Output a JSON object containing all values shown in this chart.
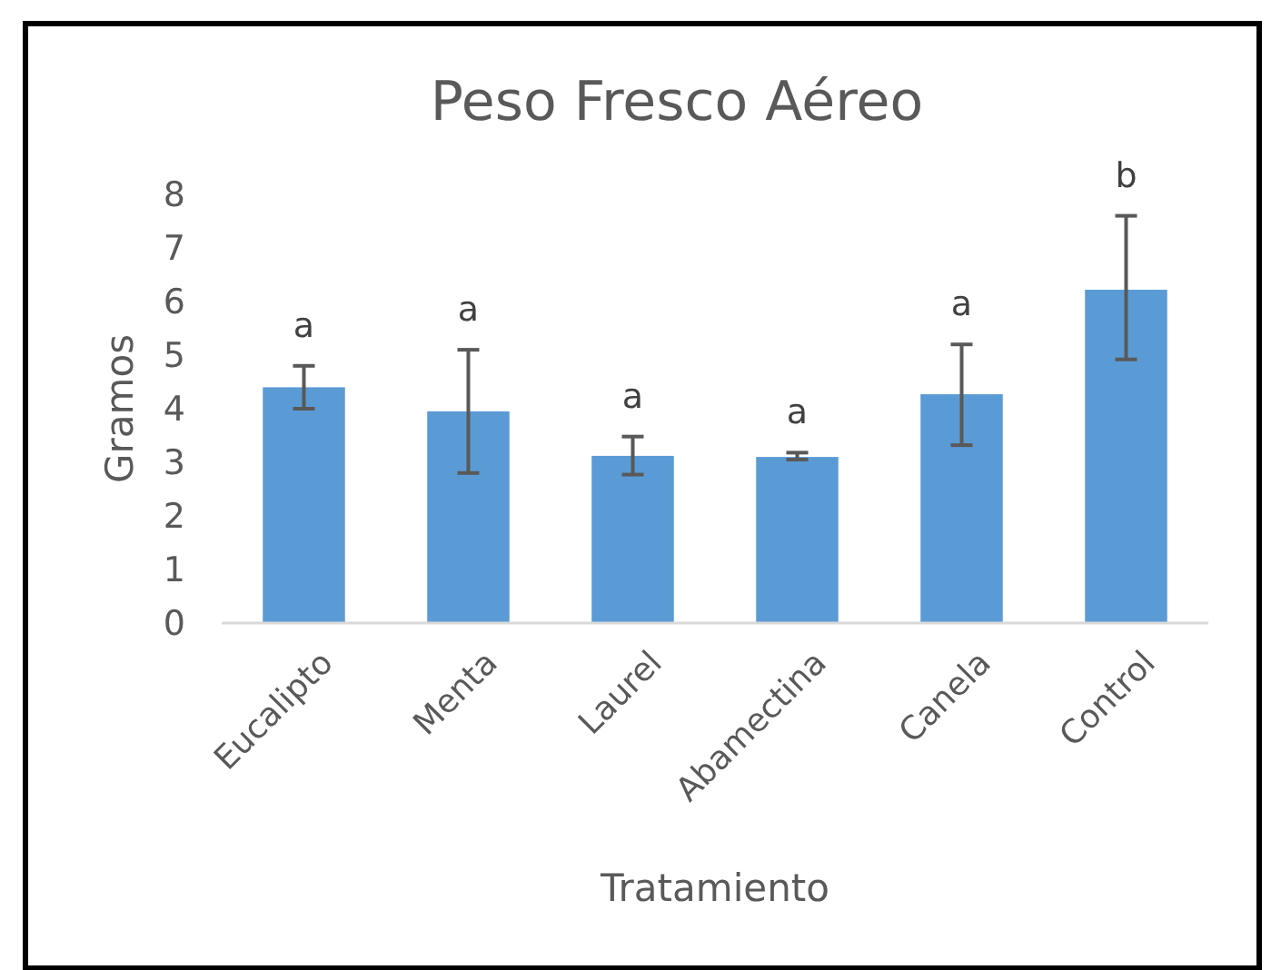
{
  "chart_data": {
    "type": "bar",
    "title": "Peso Fresco Aéreo",
    "xlabel": "Tratamiento",
    "ylabel": "Gramos",
    "categories": [
      "Eucalipto",
      "Menta",
      "Laurel",
      "Abamectina",
      "Canela",
      "Control"
    ],
    "values": [
      4.4,
      3.95,
      3.12,
      3.1,
      4.27,
      6.22
    ],
    "errors": [
      [
        4.0,
        4.8
      ],
      [
        2.8,
        5.1
      ],
      [
        2.77,
        3.48
      ],
      [
        3.05,
        3.18
      ],
      [
        3.32,
        5.2
      ],
      [
        4.92,
        7.6
      ]
    ],
    "color": "#5b9bd5",
    "ylim": [
      0,
      8
    ],
    "yticks": [
      0,
      1,
      2,
      3,
      4,
      5,
      6,
      7,
      8
    ],
    "grid": false,
    "annotations": [
      "a",
      "a",
      "a",
      "a",
      "a",
      "b"
    ]
  }
}
